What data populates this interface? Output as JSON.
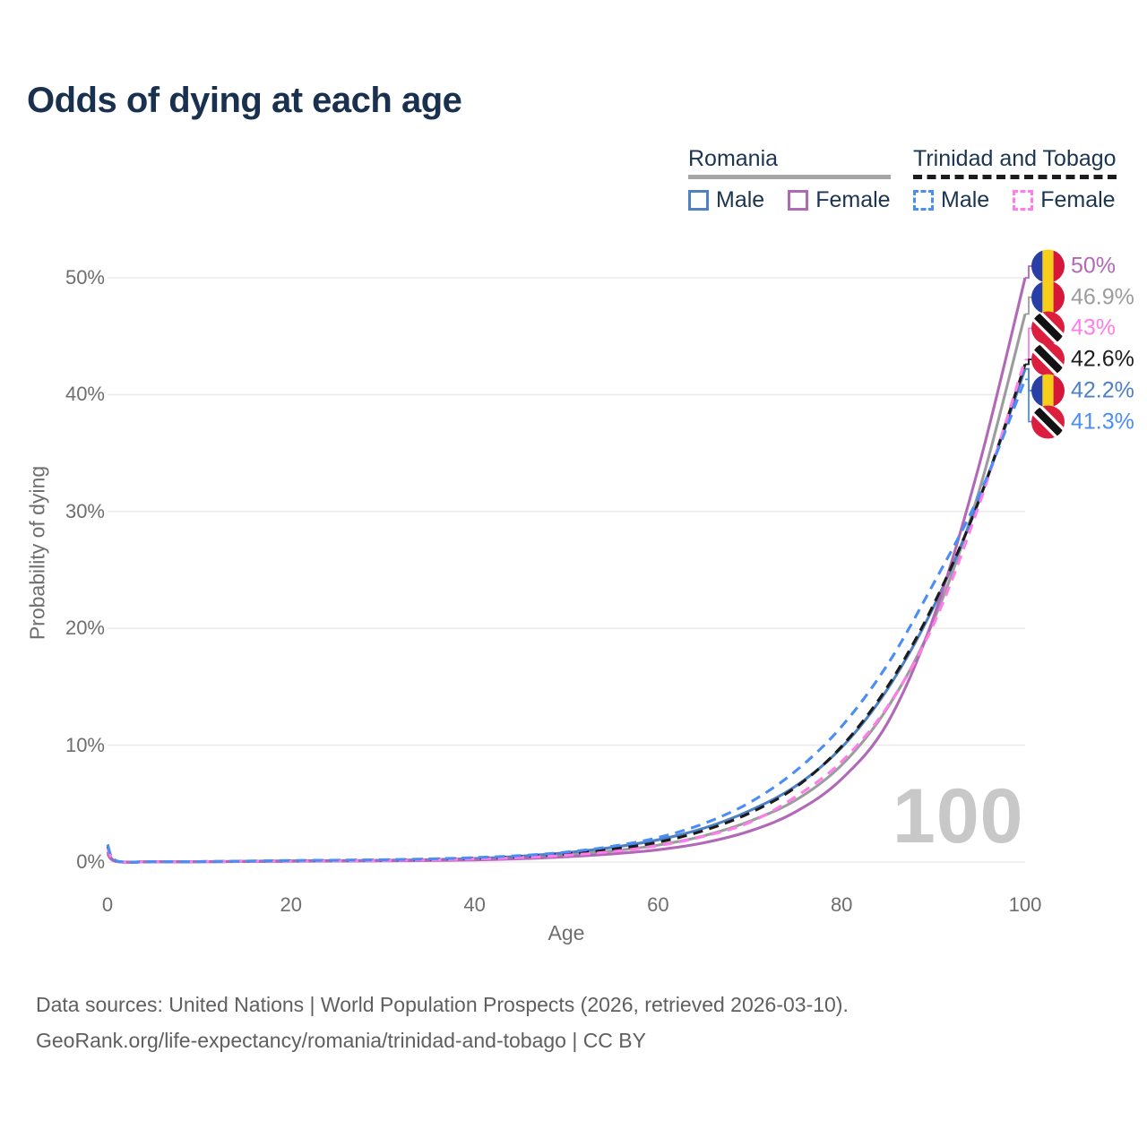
{
  "title": "Odds of dying at each age",
  "watermark": "100",
  "legend": {
    "romania": {
      "label": "Romania",
      "male": "Male",
      "female": "Female",
      "line_style": "solid"
    },
    "trinidad": {
      "label": "Trinidad and Tobago",
      "male": "Male",
      "female": "Female",
      "line_style": "dashed"
    }
  },
  "colors": {
    "romania_male": "#4e80c4",
    "romania_female": "#b168b6",
    "romania_total": "#9c9c9c",
    "trinidad_male": "#4b8df6",
    "trinidad_female": "#ff7cea",
    "trinidad_total": "#1c1c1c",
    "title_text": "#19304f",
    "axis_text": "#6e6e6e",
    "gridline": "#ebebeb",
    "watermark": "#c8c8c8",
    "footer_text": "#5f5f5f",
    "flag_ro_blue": "#2a3fa5",
    "flag_ro_yellow": "#f7cf1b",
    "flag_ro_red": "#d6173a",
    "flag_tt_red": "#dc1f3e",
    "flag_tt_black": "#121212",
    "flag_tt_white": "#ffffff"
  },
  "chart_data": {
    "type": "line",
    "title": "Odds of dying at each age",
    "xlabel": "Age",
    "ylabel": "Probability of dying",
    "xlim": [
      0,
      100
    ],
    "ylim": [
      0,
      52
    ],
    "grid": "horizontal",
    "legend_position": "top-right",
    "x_ticks": [
      "0",
      "20",
      "40",
      "60",
      "80",
      "100"
    ],
    "x_tick_values": [
      0,
      20,
      40,
      60,
      80,
      100
    ],
    "y_ticks": [
      "0%",
      "10%",
      "20%",
      "30%",
      "40%",
      "50%"
    ],
    "y_tick_values": [
      0,
      10,
      20,
      30,
      40,
      50
    ],
    "x": [
      0,
      1,
      5,
      10,
      15,
      20,
      25,
      30,
      35,
      40,
      45,
      50,
      55,
      60,
      65,
      70,
      75,
      80,
      85,
      90,
      95,
      100
    ],
    "series": [
      {
        "id": "romania_total",
        "name": "Romania",
        "country": "romania",
        "sex": "both",
        "style": "solid",
        "color_key": "romania_total",
        "end_label": "46.9%",
        "values": [
          0.8,
          0.05,
          0.025,
          0.025,
          0.05,
          0.08,
          0.1,
          0.12,
          0.17,
          0.25,
          0.4,
          0.62,
          0.95,
          1.45,
          2.25,
          3.5,
          5.3,
          8.3,
          13.2,
          20.6,
          31.8,
          46.9
        ]
      },
      {
        "id": "romania_male",
        "name": "Romania Male",
        "country": "romania",
        "sex": "male",
        "style": "solid",
        "color_key": "romania_male",
        "end_label": "42.2%",
        "values": [
          0.9,
          0.06,
          0.03,
          0.03,
          0.06,
          0.1,
          0.12,
          0.15,
          0.2,
          0.3,
          0.5,
          0.8,
          1.25,
          1.9,
          2.9,
          4.4,
          6.5,
          9.8,
          14.8,
          21.8,
          31.0,
          42.2
        ]
      },
      {
        "id": "romania_female",
        "name": "Romania Female",
        "country": "romania",
        "sex": "female",
        "style": "solid",
        "color_key": "romania_female",
        "end_label": "50%",
        "values": [
          0.7,
          0.04,
          0.02,
          0.02,
          0.04,
          0.06,
          0.08,
          0.1,
          0.13,
          0.18,
          0.28,
          0.45,
          0.7,
          1.05,
          1.65,
          2.65,
          4.3,
          7.1,
          11.9,
          20.9,
          34.0,
          50.0
        ]
      },
      {
        "id": "trinidad_total",
        "name": "Trinidad and Tobago",
        "country": "trinidad",
        "sex": "both",
        "style": "dashed",
        "color_key": "trinidad_total",
        "end_label": "42.6%",
        "values": [
          1.35,
          0.09,
          0.035,
          0.035,
          0.07,
          0.11,
          0.14,
          0.17,
          0.23,
          0.32,
          0.46,
          0.7,
          1.1,
          1.7,
          2.7,
          4.2,
          6.4,
          9.9,
          15.0,
          22.0,
          31.0,
          42.6
        ]
      },
      {
        "id": "trinidad_female",
        "name": "Trinidad and Tobago Female",
        "country": "trinidad",
        "sex": "female",
        "style": "dashed",
        "color_key": "trinidad_female",
        "end_label": "43%",
        "values": [
          1.2,
          0.08,
          0.03,
          0.03,
          0.05,
          0.08,
          0.1,
          0.13,
          0.18,
          0.26,
          0.38,
          0.58,
          0.9,
          1.4,
          2.2,
          3.4,
          5.6,
          8.6,
          13.3,
          20.3,
          30.6,
          43.0
        ]
      },
      {
        "id": "trinidad_male",
        "name": "Trinidad and Tobago Male",
        "country": "trinidad",
        "sex": "male",
        "style": "dashed",
        "color_key": "trinidad_male",
        "end_label": "41.3%",
        "values": [
          1.5,
          0.1,
          0.04,
          0.04,
          0.08,
          0.13,
          0.16,
          0.2,
          0.27,
          0.38,
          0.55,
          0.85,
          1.35,
          2.1,
          3.3,
          5.1,
          7.8,
          11.6,
          16.9,
          23.8,
          31.4,
          41.3
        ]
      }
    ]
  },
  "end_labels": [
    {
      "text": "50%",
      "series_id": "romania_female"
    },
    {
      "text": "46.9%",
      "series_id": "romania_total"
    },
    {
      "text": "43%",
      "series_id": "trinidad_female"
    },
    {
      "text": "42.6%",
      "series_id": "trinidad_total"
    },
    {
      "text": "42.2%",
      "series_id": "romania_male"
    },
    {
      "text": "41.3%",
      "series_id": "trinidad_male"
    }
  ],
  "footer": {
    "line1": "Data sources: United Nations | World Population Prospects (2026, retrieved 2026-03-10).",
    "line2": "GeoRank.org/life-expectancy/romania/trinidad-and-tobago | CC BY"
  }
}
